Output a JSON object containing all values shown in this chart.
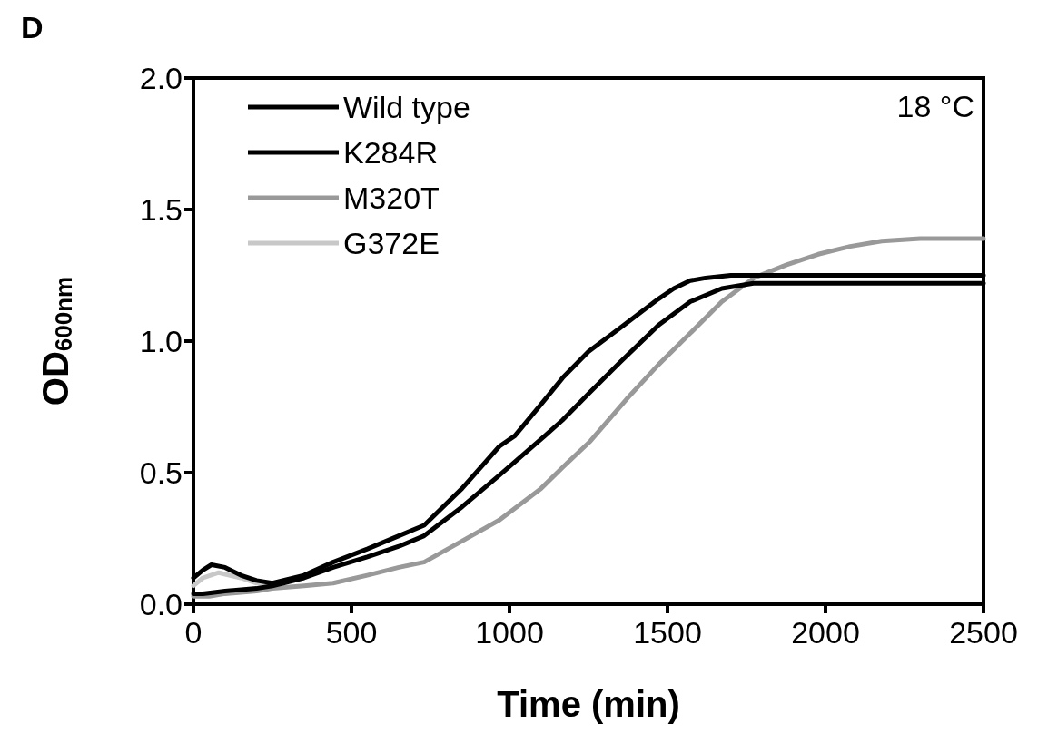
{
  "chart_data": {
    "type": "line",
    "title": "D",
    "xlabel": "Time (min)",
    "ylabel": "OD$_{600nm}$",
    "annotations": [
      "18 °C"
    ],
    "xlim": [
      0,
      2500
    ],
    "xticks": [
      0,
      500,
      1000,
      1500,
      2000,
      2500
    ],
    "ylim": [
      0,
      2.0
    ],
    "yticks": [
      {
        "value": 0,
        "label": "0.0"
      },
      0.5,
      {
        "value": 1,
        "label": "1.0"
      },
      1.5,
      {
        "value": 2,
        "label": "2.0"
      }
    ],
    "grid": false,
    "legend": "top left",
    "marker": "none",
    "line_style": "solid",
    "series": [
      {
        "name": "Wild type",
        "color": "#000000",
        "x": [
          0,
          30,
          57,
          100,
          150,
          200,
          250,
          350,
          442,
          550,
          650,
          730,
          850,
          968,
          1017,
          1100,
          1168,
          1250,
          1350,
          1471,
          1520,
          1572,
          1620,
          1700,
          1800,
          2000,
          2200,
          2500
        ],
        "values": [
          0.1,
          0.13,
          0.15,
          0.14,
          0.11,
          0.09,
          0.08,
          0.11,
          0.16,
          0.21,
          0.26,
          0.3,
          0.44,
          0.6,
          0.64,
          0.76,
          0.86,
          0.96,
          1.05,
          1.16,
          1.2,
          1.23,
          1.24,
          1.25,
          1.25,
          1.25,
          1.25,
          1.25
        ]
      },
      {
        "name": "K284R",
        "color": "#000000",
        "x": [
          0,
          30,
          100,
          200,
          250,
          350,
          442,
          550,
          650,
          730,
          850,
          968,
          1112,
          1168,
          1250,
          1350,
          1471,
          1572,
          1672,
          1772,
          2000,
          2500
        ],
        "values": [
          0.04,
          0.04,
          0.05,
          0.06,
          0.07,
          0.1,
          0.14,
          0.18,
          0.22,
          0.26,
          0.37,
          0.49,
          0.64,
          0.7,
          0.8,
          0.92,
          1.06,
          1.15,
          1.2,
          1.22,
          1.22,
          1.22
        ]
      },
      {
        "name": "M320T",
        "color": "#999999",
        "x": [
          0,
          50,
          100,
          200,
          250,
          350,
          442,
          550,
          650,
          730,
          850,
          968,
          1100,
          1168,
          1256,
          1371,
          1471,
          1572,
          1672,
          1773,
          1877,
          1977,
          2078,
          2178,
          2300,
          2400,
          2500
        ],
        "values": [
          0.03,
          0.03,
          0.04,
          0.05,
          0.06,
          0.07,
          0.08,
          0.11,
          0.14,
          0.16,
          0.24,
          0.32,
          0.44,
          0.52,
          0.62,
          0.78,
          0.91,
          1.03,
          1.15,
          1.24,
          1.29,
          1.33,
          1.36,
          1.38,
          1.39,
          1.39,
          1.39
        ]
      },
      {
        "name": "G372E",
        "color": "#c8c8c8",
        "x": [
          0,
          30,
          80,
          150,
          200,
          250
        ],
        "values": [
          0.07,
          0.1,
          0.12,
          0.1,
          0.08,
          0.07
        ]
      }
    ]
  }
}
